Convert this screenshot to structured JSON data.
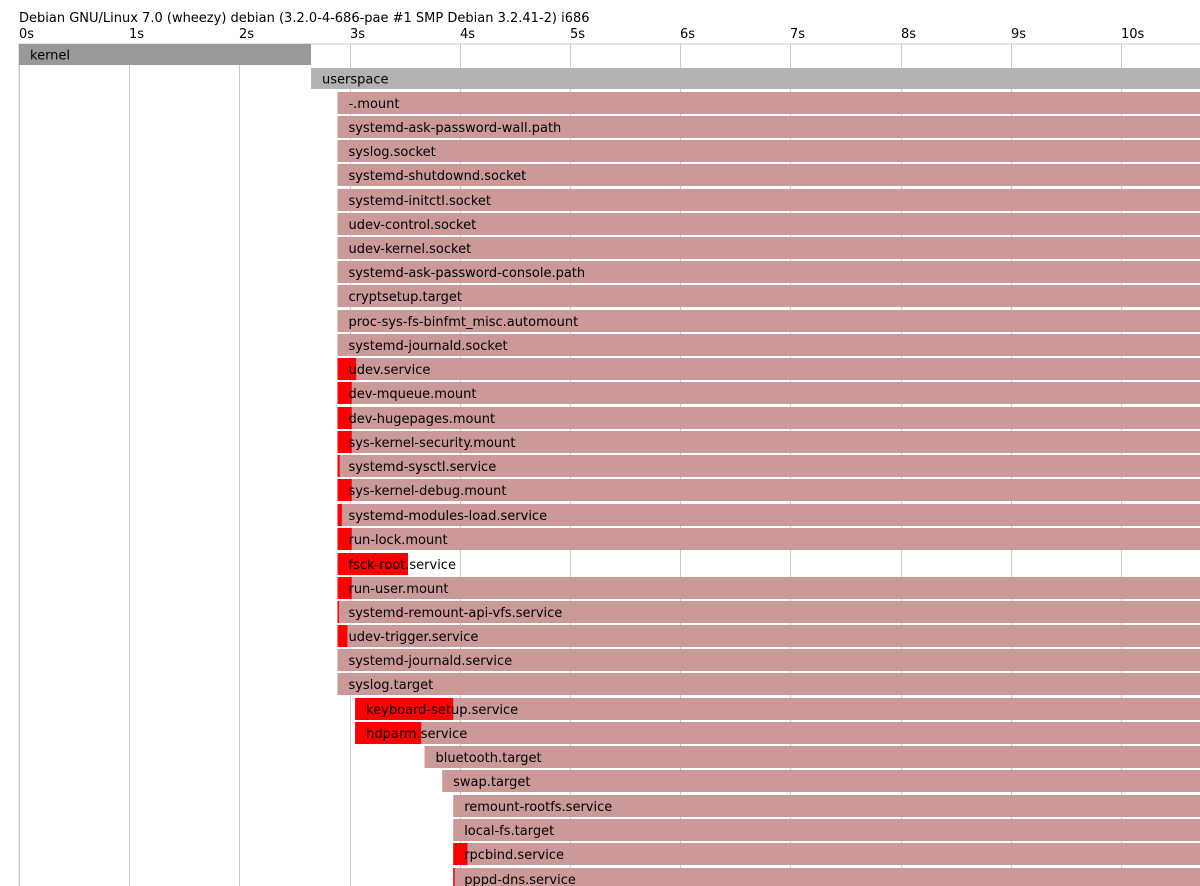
{
  "chart_data": {
    "type": "gantt",
    "title": "Debian GNU/Linux 7.0 (wheezy) debian (3.2.0-4-686-pae #1 SMP Debian 3.2.41-2) i686",
    "xlabel": "",
    "ylabel": "",
    "x_unit": "s",
    "xlim": [
      0,
      10.72
    ],
    "ticks": [
      "0s",
      "1s",
      "2s",
      "3s",
      "4s",
      "5s",
      "6s",
      "7s",
      "8s",
      "9s",
      "10s"
    ],
    "grid": true,
    "colors": {
      "kernel": "#999999",
      "userspace": "#b3b3b3",
      "unit": "#cc9999",
      "activating": "#ff0000",
      "grid": "#cccccc"
    },
    "bars": [
      {
        "label": "kernel",
        "kind": "kernel",
        "start": 0.0,
        "end": 2.65
      },
      {
        "label": "userspace",
        "kind": "userspace",
        "start": 2.65,
        "end": 10.72
      },
      {
        "label": "-.mount",
        "kind": "unit",
        "start": 2.89,
        "end": 10.72
      },
      {
        "label": "systemd-ask-password-wall.path",
        "kind": "unit",
        "start": 2.89,
        "end": 10.72
      },
      {
        "label": "syslog.socket",
        "kind": "unit",
        "start": 2.89,
        "end": 10.72
      },
      {
        "label": "systemd-shutdownd.socket",
        "kind": "unit",
        "start": 2.89,
        "end": 10.72
      },
      {
        "label": "systemd-initctl.socket",
        "kind": "unit",
        "start": 2.89,
        "end": 10.72
      },
      {
        "label": "udev-control.socket",
        "kind": "unit",
        "start": 2.89,
        "end": 10.72
      },
      {
        "label": "udev-kernel.socket",
        "kind": "unit",
        "start": 2.89,
        "end": 10.72
      },
      {
        "label": "systemd-ask-password-console.path",
        "kind": "unit",
        "start": 2.89,
        "end": 10.72
      },
      {
        "label": "cryptsetup.target",
        "kind": "unit",
        "start": 2.89,
        "end": 10.72
      },
      {
        "label": "proc-sys-fs-binfmt_misc.automount",
        "kind": "unit",
        "start": 2.89,
        "end": 10.72
      },
      {
        "label": "systemd-journald.socket",
        "kind": "unit",
        "start": 2.89,
        "end": 10.72
      },
      {
        "label": "udev.service",
        "kind": "unit",
        "start": 2.89,
        "end": 10.72,
        "activating": 0.17
      },
      {
        "label": "dev-mqueue.mount",
        "kind": "unit",
        "start": 2.89,
        "end": 10.72,
        "activating": 0.13
      },
      {
        "label": "dev-hugepages.mount",
        "kind": "unit",
        "start": 2.89,
        "end": 10.72,
        "activating": 0.13
      },
      {
        "label": "sys-kernel-security.mount",
        "kind": "unit",
        "start": 2.89,
        "end": 10.72,
        "activating": 0.13
      },
      {
        "label": "systemd-sysctl.service",
        "kind": "unit",
        "start": 2.89,
        "end": 10.72,
        "activating": 0.02
      },
      {
        "label": "sys-kernel-debug.mount",
        "kind": "unit",
        "start": 2.89,
        "end": 10.72,
        "activating": 0.13
      },
      {
        "label": "systemd-modules-load.service",
        "kind": "unit",
        "start": 2.89,
        "end": 10.72,
        "activating": 0.04
      },
      {
        "label": "run-lock.mount",
        "kind": "unit",
        "start": 2.89,
        "end": 10.72,
        "activating": 0.13
      },
      {
        "label": "fsck-root.service",
        "kind": "unit",
        "start": 2.89,
        "end": 3.53,
        "activating": 0.64
      },
      {
        "label": "run-user.mount",
        "kind": "unit",
        "start": 2.89,
        "end": 10.72,
        "activating": 0.13
      },
      {
        "label": "systemd-remount-api-vfs.service",
        "kind": "unit",
        "start": 2.89,
        "end": 10.72,
        "activating": 0.01
      },
      {
        "label": "udev-trigger.service",
        "kind": "unit",
        "start": 2.89,
        "end": 10.72,
        "activating": 0.09
      },
      {
        "label": "systemd-journald.service",
        "kind": "unit",
        "start": 2.89,
        "end": 10.72
      },
      {
        "label": "syslog.target",
        "kind": "unit",
        "start": 2.89,
        "end": 10.72
      },
      {
        "label": "keyboard-setup.service",
        "kind": "unit",
        "start": 3.05,
        "end": 10.72,
        "activating": 0.89
      },
      {
        "label": "hdparm.service",
        "kind": "unit",
        "start": 3.05,
        "end": 10.72,
        "activating": 0.6
      },
      {
        "label": "bluetooth.target",
        "kind": "unit",
        "start": 3.68,
        "end": 10.72
      },
      {
        "label": "swap.target",
        "kind": "unit",
        "start": 3.84,
        "end": 10.72
      },
      {
        "label": "remount-rootfs.service",
        "kind": "unit",
        "start": 3.94,
        "end": 10.72
      },
      {
        "label": "local-fs.target",
        "kind": "unit",
        "start": 3.94,
        "end": 10.72
      },
      {
        "label": "rpcbind.service",
        "kind": "unit",
        "start": 3.94,
        "end": 10.72,
        "activating": 0.13
      },
      {
        "label": "pppd-dns.service",
        "kind": "unit",
        "start": 3.94,
        "end": 10.72,
        "activating": 0.01
      }
    ]
  }
}
